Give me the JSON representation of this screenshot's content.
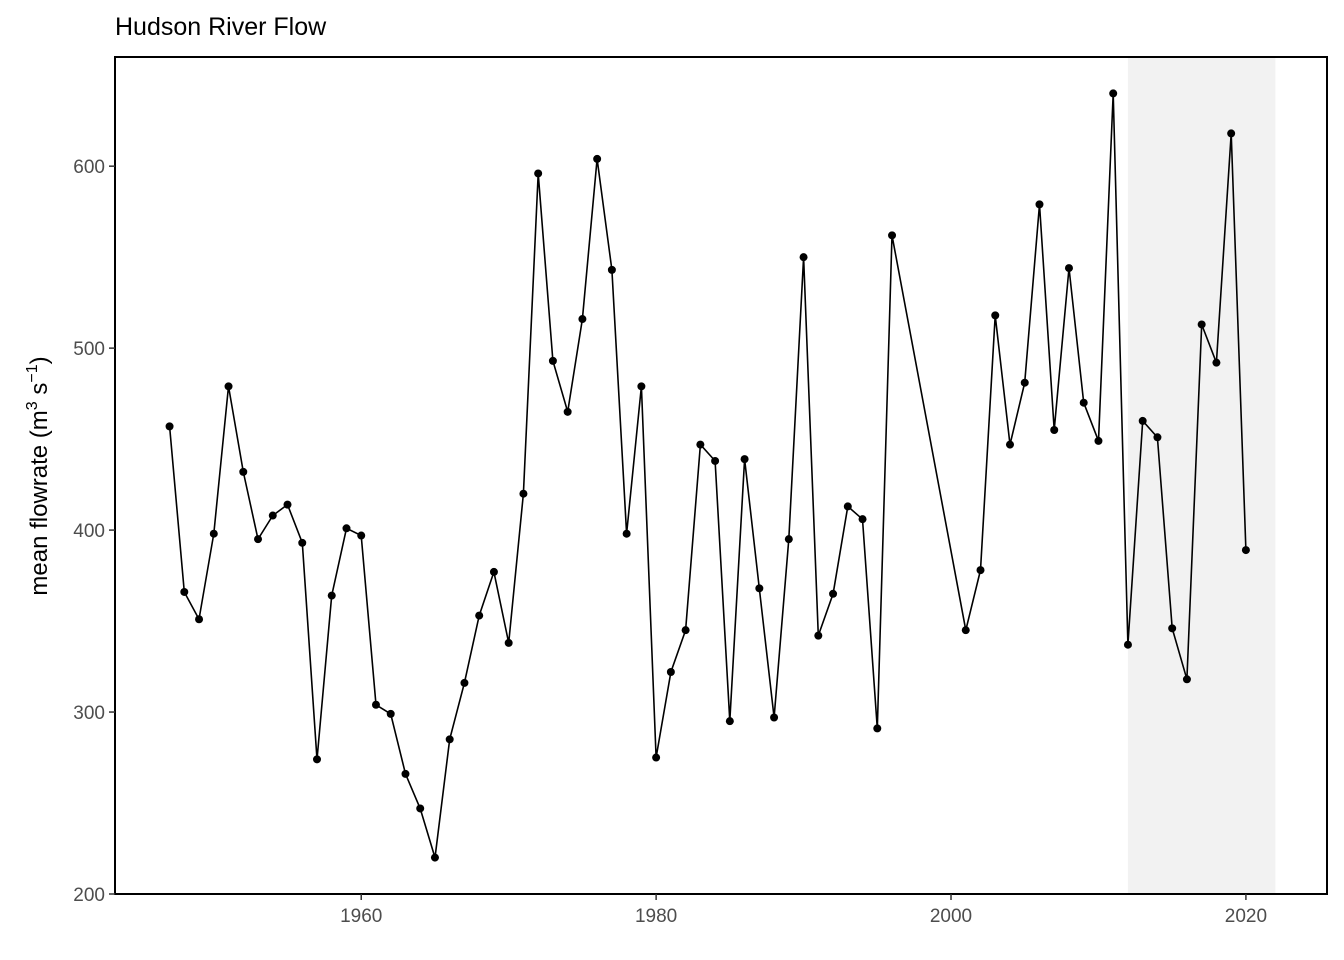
{
  "chart_data": {
    "type": "line",
    "title": "Hudson River Flow",
    "xlabel": "",
    "ylabel": "mean flowrate (m³ s⁻¹)",
    "ylabel_parts": {
      "main": "mean flowrate (m",
      "sup1": "3",
      "mid": " s",
      "sup2": "−1",
      "end": ")"
    },
    "xlim": [
      1943.3,
      2025.5
    ],
    "ylim": [
      200,
      660
    ],
    "xticks": [
      1960,
      1980,
      2000,
      2020
    ],
    "yticks": [
      200,
      300,
      400,
      500,
      600
    ],
    "grid": false,
    "markers": true,
    "colors": {
      "line": "#000000",
      "point": "#000000",
      "shade": "#f2f2f2",
      "frame": "#000000",
      "tick_text": "#4d4d4d"
    },
    "highlight_range": [
      2012,
      2022
    ],
    "x": [
      1947,
      1948,
      1949,
      1950,
      1951,
      1952,
      1953,
      1954,
      1955,
      1956,
      1957,
      1958,
      1959,
      1960,
      1961,
      1962,
      1963,
      1964,
      1965,
      1966,
      1967,
      1968,
      1969,
      1970,
      1971,
      1972,
      1973,
      1974,
      1975,
      1976,
      1977,
      1978,
      1979,
      1980,
      1981,
      1982,
      1983,
      1984,
      1985,
      1986,
      1987,
      1988,
      1989,
      1990,
      1991,
      1992,
      1993,
      1994,
      1995,
      1996,
      2001,
      2002,
      2003,
      2004,
      2005,
      2006,
      2007,
      2008,
      2009,
      2010,
      2011,
      2012,
      2013,
      2014,
      2015,
      2016,
      2017,
      2018,
      2019,
      2020
    ],
    "series": [
      {
        "values": [
          457,
          366,
          351,
          398,
          479,
          432,
          395,
          408,
          414,
          393,
          274,
          364,
          401,
          397,
          304,
          299,
          266,
          247,
          220,
          285,
          316,
          353,
          377,
          338,
          420,
          596,
          493,
          465,
          516,
          604,
          543,
          398,
          479,
          275,
          322,
          345,
          447,
          438,
          295,
          439,
          368,
          297,
          395,
          550,
          342,
          365,
          413,
          406,
          291,
          562,
          345,
          378,
          518,
          447,
          481,
          579,
          455,
          544,
          470,
          449,
          640,
          337,
          460,
          451,
          346,
          318,
          513,
          492,
          618,
          389
        ]
      }
    ]
  }
}
